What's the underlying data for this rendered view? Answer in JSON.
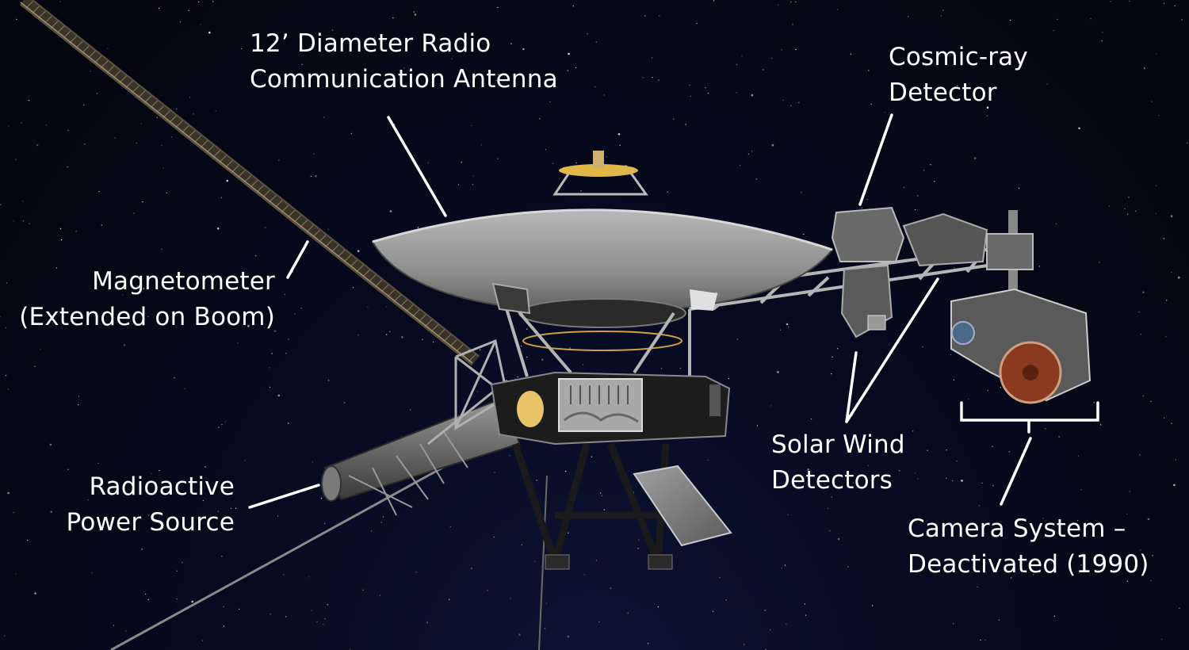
{
  "labels": {
    "antenna": {
      "line1": "12’ Diameter Radio",
      "line2": "Communication Antenna"
    },
    "cosmic_ray": {
      "line1": "Cosmic-ray",
      "line2": "Detector"
    },
    "magnetometer": {
      "line1": "Magnetometer",
      "line2": "(Extended on Boom)"
    },
    "solar_wind": {
      "line1": "Solar Wind",
      "line2": "Detectors"
    },
    "power_source": {
      "line1": "Radioactive",
      "line2": "Power Source"
    },
    "camera": {
      "line1": "Camera System –",
      "line2": "Deactivated (1990)"
    }
  },
  "colors": {
    "label_text": "#ffffff",
    "leader_line": "#ffffff",
    "background": "#05060f",
    "dish": "#9a9a9a",
    "bus_gold": "#e8c56a"
  }
}
